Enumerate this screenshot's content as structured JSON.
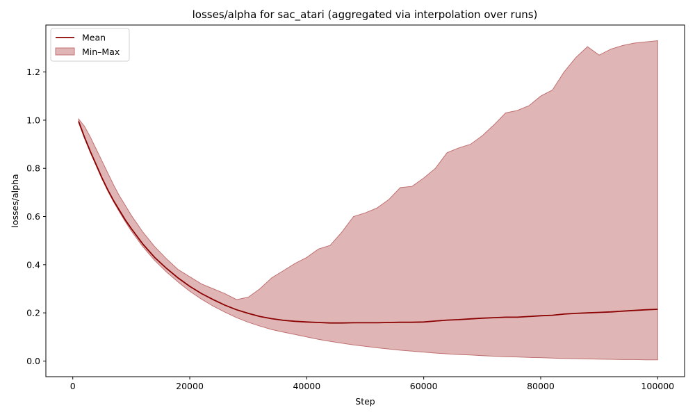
{
  "chart_data": {
    "type": "line",
    "title": "losses/alpha for sac_atari (aggregated via interpolation over runs)",
    "xlabel": "Step",
    "ylabel": "losses/alpha",
    "xlim": [
      -4600,
      104600
    ],
    "ylim": [
      -0.065,
      1.395
    ],
    "xticks": [
      0,
      20000,
      40000,
      60000,
      80000,
      100000
    ],
    "xtick_labels": [
      "0",
      "20000",
      "40000",
      "60000",
      "80000",
      "100000"
    ],
    "yticks": [
      0.0,
      0.2,
      0.4,
      0.6,
      0.8,
      1.0,
      1.2
    ],
    "ytick_labels": [
      "0.0",
      "0.2",
      "0.4",
      "0.6",
      "0.8",
      "1.0",
      "1.2"
    ],
    "grid": false,
    "legend_position": "top-left",
    "colors": {
      "mean": "#8b0000",
      "band_fill": "#c06c6e",
      "band_edge": "#c07070"
    },
    "x": [
      1000,
      2000,
      3000,
      4000,
      5000,
      6000,
      7000,
      8000,
      9000,
      10000,
      12000,
      14000,
      16000,
      18000,
      20000,
      22000,
      24000,
      26000,
      28000,
      30000,
      32000,
      34000,
      36000,
      38000,
      40000,
      42000,
      44000,
      46000,
      48000,
      50000,
      52000,
      54000,
      56000,
      58000,
      60000,
      62000,
      64000,
      66000,
      68000,
      70000,
      72000,
      74000,
      76000,
      78000,
      80000,
      82000,
      84000,
      86000,
      88000,
      90000,
      92000,
      94000,
      96000,
      98000,
      100000
    ],
    "series": [
      {
        "name": "Mean",
        "type": "line",
        "values": [
          0.995,
          0.93,
          0.87,
          0.815,
          0.76,
          0.71,
          0.665,
          0.625,
          0.585,
          0.55,
          0.485,
          0.43,
          0.385,
          0.345,
          0.31,
          0.28,
          0.255,
          0.232,
          0.213,
          0.198,
          0.185,
          0.176,
          0.169,
          0.165,
          0.162,
          0.16,
          0.158,
          0.158,
          0.159,
          0.159,
          0.159,
          0.16,
          0.161,
          0.161,
          0.162,
          0.166,
          0.17,
          0.172,
          0.175,
          0.178,
          0.18,
          0.182,
          0.182,
          0.185,
          0.188,
          0.19,
          0.195,
          0.198,
          0.2,
          0.202,
          0.204,
          0.207,
          0.21,
          0.213,
          0.215
        ]
      },
      {
        "name": "Min–Max",
        "type": "band",
        "lower": [
          0.99,
          0.925,
          0.865,
          0.81,
          0.755,
          0.705,
          0.66,
          0.618,
          0.578,
          0.54,
          0.474,
          0.418,
          0.37,
          0.328,
          0.29,
          0.257,
          0.228,
          0.203,
          0.18,
          0.161,
          0.145,
          0.131,
          0.12,
          0.11,
          0.1,
          0.09,
          0.082,
          0.074,
          0.067,
          0.061,
          0.055,
          0.05,
          0.045,
          0.041,
          0.037,
          0.033,
          0.03,
          0.027,
          0.025,
          0.022,
          0.02,
          0.018,
          0.017,
          0.015,
          0.014,
          0.012,
          0.011,
          0.01,
          0.009,
          0.008,
          0.007,
          0.006,
          0.006,
          0.005,
          0.005
        ],
        "upper": [
          1.005,
          0.975,
          0.93,
          0.88,
          0.83,
          0.78,
          0.73,
          0.685,
          0.645,
          0.605,
          0.535,
          0.475,
          0.425,
          0.38,
          0.35,
          0.32,
          0.3,
          0.28,
          0.255,
          0.265,
          0.3,
          0.345,
          0.375,
          0.405,
          0.43,
          0.465,
          0.48,
          0.535,
          0.6,
          0.615,
          0.635,
          0.67,
          0.72,
          0.725,
          0.76,
          0.8,
          0.865,
          0.885,
          0.9,
          0.935,
          0.98,
          1.03,
          1.04,
          1.06,
          1.1,
          1.125,
          1.2,
          1.26,
          1.305,
          1.27,
          1.295,
          1.31,
          1.32,
          1.325,
          1.33
        ]
      }
    ]
  }
}
